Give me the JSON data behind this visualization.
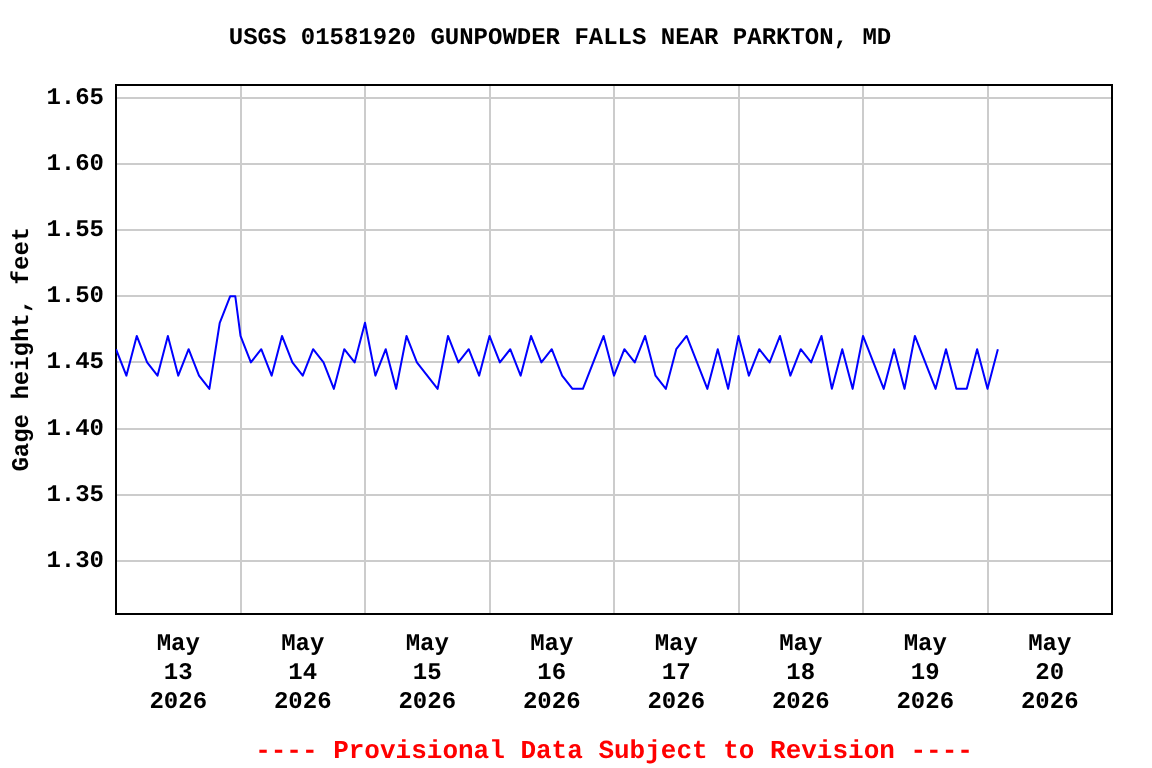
{
  "chart_data": {
    "type": "line",
    "title": "USGS 01581920 GUNPOWDER FALLS NEAR PARKTON, MD",
    "ylabel": "Gage height, feet",
    "annotations": [
      "---- Provisional Data Subject to Revision ----"
    ],
    "x": [
      "2026-05-13T00:00",
      "2026-05-13T02:00",
      "2026-05-13T04:00",
      "2026-05-13T06:00",
      "2026-05-13T08:00",
      "2026-05-13T10:00",
      "2026-05-13T12:00",
      "2026-05-13T14:00",
      "2026-05-13T16:00",
      "2026-05-13T18:00",
      "2026-05-13T20:00",
      "2026-05-13T21:00",
      "2026-05-13T22:00",
      "2026-05-13T23:00",
      "2026-05-14T00:00",
      "2026-05-14T02:00",
      "2026-05-14T04:00",
      "2026-05-14T06:00",
      "2026-05-14T08:00",
      "2026-05-14T10:00",
      "2026-05-14T12:00",
      "2026-05-14T14:00",
      "2026-05-14T16:00",
      "2026-05-14T18:00",
      "2026-05-14T20:00",
      "2026-05-14T22:00",
      "2026-05-15T00:00",
      "2026-05-15T02:00",
      "2026-05-15T04:00",
      "2026-05-15T06:00",
      "2026-05-15T08:00",
      "2026-05-15T10:00",
      "2026-05-15T12:00",
      "2026-05-15T14:00",
      "2026-05-15T16:00",
      "2026-05-15T18:00",
      "2026-05-15T20:00",
      "2026-05-15T22:00",
      "2026-05-16T00:00",
      "2026-05-16T02:00",
      "2026-05-16T04:00",
      "2026-05-16T06:00",
      "2026-05-16T08:00",
      "2026-05-16T10:00",
      "2026-05-16T12:00",
      "2026-05-16T14:00",
      "2026-05-16T16:00",
      "2026-05-16T18:00",
      "2026-05-16T20:00",
      "2026-05-16T22:00",
      "2026-05-17T00:00",
      "2026-05-17T02:00",
      "2026-05-17T04:00",
      "2026-05-17T06:00",
      "2026-05-17T08:00",
      "2026-05-17T10:00",
      "2026-05-17T12:00",
      "2026-05-17T14:00",
      "2026-05-17T16:00",
      "2026-05-17T18:00",
      "2026-05-17T20:00",
      "2026-05-17T22:00",
      "2026-05-18T00:00",
      "2026-05-18T02:00",
      "2026-05-18T04:00",
      "2026-05-18T06:00",
      "2026-05-18T08:00",
      "2026-05-18T10:00",
      "2026-05-18T12:00",
      "2026-05-18T14:00",
      "2026-05-18T16:00",
      "2026-05-18T18:00",
      "2026-05-18T20:00",
      "2026-05-18T22:00",
      "2026-05-19T00:00",
      "2026-05-19T02:00",
      "2026-05-19T04:00",
      "2026-05-19T06:00",
      "2026-05-19T08:00",
      "2026-05-19T10:00",
      "2026-05-19T12:00",
      "2026-05-19T14:00",
      "2026-05-19T16:00",
      "2026-05-19T18:00",
      "2026-05-19T20:00",
      "2026-05-19T22:00",
      "2026-05-20T00:00",
      "2026-05-20T02:00"
    ],
    "series": [
      {
        "color": "#0000ff",
        "values": [
          1.46,
          1.44,
          1.47,
          1.45,
          1.44,
          1.47,
          1.44,
          1.46,
          1.44,
          1.43,
          1.48,
          1.49,
          1.5,
          1.5,
          1.47,
          1.45,
          1.46,
          1.44,
          1.47,
          1.45,
          1.44,
          1.46,
          1.45,
          1.43,
          1.46,
          1.45,
          1.48,
          1.44,
          1.46,
          1.43,
          1.47,
          1.45,
          1.44,
          1.43,
          1.47,
          1.45,
          1.46,
          1.44,
          1.47,
          1.45,
          1.46,
          1.44,
          1.47,
          1.45,
          1.46,
          1.44,
          1.43,
          1.43,
          1.45,
          1.47,
          1.44,
          1.46,
          1.45,
          1.47,
          1.44,
          1.43,
          1.46,
          1.47,
          1.45,
          1.43,
          1.46,
          1.43,
          1.47,
          1.44,
          1.46,
          1.45,
          1.47,
          1.44,
          1.46,
          1.45,
          1.47,
          1.43,
          1.46,
          1.43,
          1.47,
          1.45,
          1.43,
          1.46,
          1.43,
          1.47,
          1.45,
          1.43,
          1.46,
          1.43,
          1.43,
          1.46,
          1.43,
          1.46
        ]
      }
    ],
    "xlim": [
      "2026-05-13T00:00",
      "2026-05-21T00:00"
    ],
    "xticks": [
      {
        "value": "2026-05-13T12:00",
        "label": "May 13 2026"
      },
      {
        "value": "2026-05-14T00:00",
        "label": null
      },
      {
        "value": "2026-05-14T12:00",
        "label": "May 14 2026"
      },
      {
        "value": "2026-05-15T00:00",
        "label": null
      },
      {
        "value": "2026-05-15T12:00",
        "label": "May 15 2026"
      },
      {
        "value": "2026-05-16T00:00",
        "label": null
      },
      {
        "value": "2026-05-16T12:00",
        "label": "May 16 2026"
      },
      {
        "value": "2026-05-17T00:00",
        "label": null
      },
      {
        "value": "2026-05-17T12:00",
        "label": "May 17 2026"
      },
      {
        "value": "2026-05-18T00:00",
        "label": null
      },
      {
        "value": "2026-05-18T12:00",
        "label": "May 18 2026"
      },
      {
        "value": "2026-05-19T00:00",
        "label": null
      },
      {
        "value": "2026-05-19T12:00",
        "label": "May 19 2026"
      },
      {
        "value": "2026-05-20T00:00",
        "label": null
      },
      {
        "value": "2026-05-20T12:00",
        "label": "May 20 2026"
      }
    ],
    "ylim": [
      1.26,
      1.66
    ],
    "yticks": [
      {
        "value": 1.3,
        "label": "1.30"
      },
      {
        "value": 1.35,
        "label": "1.35"
      },
      {
        "value": 1.4,
        "label": "1.40"
      },
      {
        "value": 1.45,
        "label": "1.45"
      },
      {
        "value": 1.5,
        "label": "1.50"
      },
      {
        "value": 1.55,
        "label": "1.55"
      },
      {
        "value": 1.6,
        "label": "1.60"
      },
      {
        "value": 1.65,
        "label": "1.65"
      }
    ],
    "grid": true,
    "legend": false
  }
}
